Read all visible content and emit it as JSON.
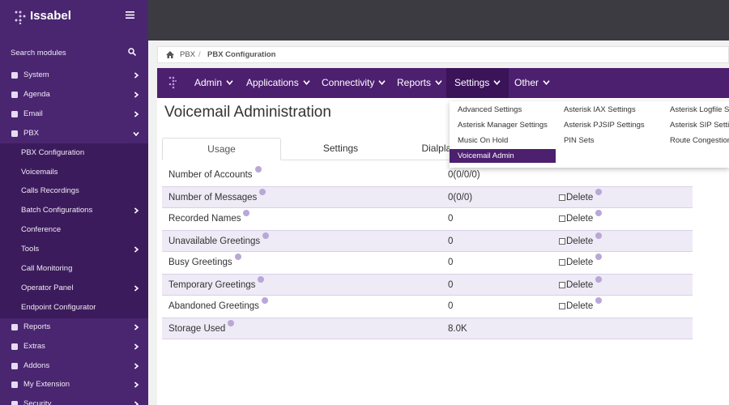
{
  "sidebar": {
    "brand": "Issabel",
    "search": "Search modules",
    "menu": [
      {
        "label": "System",
        "arrow": "right"
      },
      {
        "label": "Agenda",
        "arrow": "right"
      },
      {
        "label": "Email",
        "arrow": "right"
      },
      {
        "label": "PBX",
        "arrow": "down"
      },
      {
        "label": "PBX Configuration",
        "sub": true
      },
      {
        "label": "Voicemails",
        "sub": true
      },
      {
        "label": "Calls Recordings",
        "sub": true
      },
      {
        "label": "Batch Configurations",
        "sub": true,
        "arrow": "right"
      },
      {
        "label": "Conference",
        "sub": true
      },
      {
        "label": "Tools",
        "sub": true,
        "arrow": "right"
      },
      {
        "label": "Call Monitoring",
        "sub": true
      },
      {
        "label": "Operator Panel",
        "sub": true,
        "arrow": "right"
      },
      {
        "label": "Endpoint Configurator",
        "sub": true
      },
      {
        "label": "Reports",
        "arrow": "right"
      },
      {
        "label": "Extras",
        "arrow": "right"
      },
      {
        "label": "Addons",
        "arrow": "right"
      },
      {
        "label": "My Extension",
        "arrow": "right"
      },
      {
        "label": "Security",
        "arrow": "right"
      }
    ]
  },
  "breadcrumb": {
    "items": [
      "PBX",
      "PBX Configuration"
    ],
    "separator": "/"
  },
  "nav": {
    "items": [
      "Admin",
      "Applications",
      "Connectivity",
      "Reports",
      "Settings",
      "Other"
    ],
    "active": 4
  },
  "dropdown": {
    "columns": [
      [
        "Advanced Settings",
        "Asterisk Manager Settings",
        "Music On Hold",
        "Voicemail Admin"
      ],
      [
        "Asterisk IAX Settings",
        "Asterisk PJSIP Settings",
        "PIN Sets"
      ],
      [
        "Asterisk Logfile Settings",
        "Asterisk SIP Settings",
        "Route Congestion Messages"
      ]
    ],
    "active": [
      0,
      3
    ]
  },
  "page": {
    "title": "Voicemail Administration",
    "tabs": [
      "Usage",
      "Settings",
      "Dialplan Behavior"
    ],
    "active_tab": 0
  },
  "table": {
    "delete_label": "Delete",
    "rows": [
      {
        "label": "Number of Accounts",
        "value": "0(0/0/0)",
        "delete": false
      },
      {
        "label": "Number of Messages",
        "value": "0(0/0)",
        "delete": true
      },
      {
        "label": "Recorded Names",
        "value": "0",
        "delete": true
      },
      {
        "label": "Unavailable Greetings",
        "value": "0",
        "delete": true
      },
      {
        "label": "Busy Greetings",
        "value": "0",
        "delete": true
      },
      {
        "label": "Temporary Greetings",
        "value": "0",
        "delete": true
      },
      {
        "label": "Abandoned Greetings",
        "value": "0",
        "delete": true
      },
      {
        "label": "Storage Used",
        "value": "8.0K",
        "delete": false
      }
    ]
  }
}
